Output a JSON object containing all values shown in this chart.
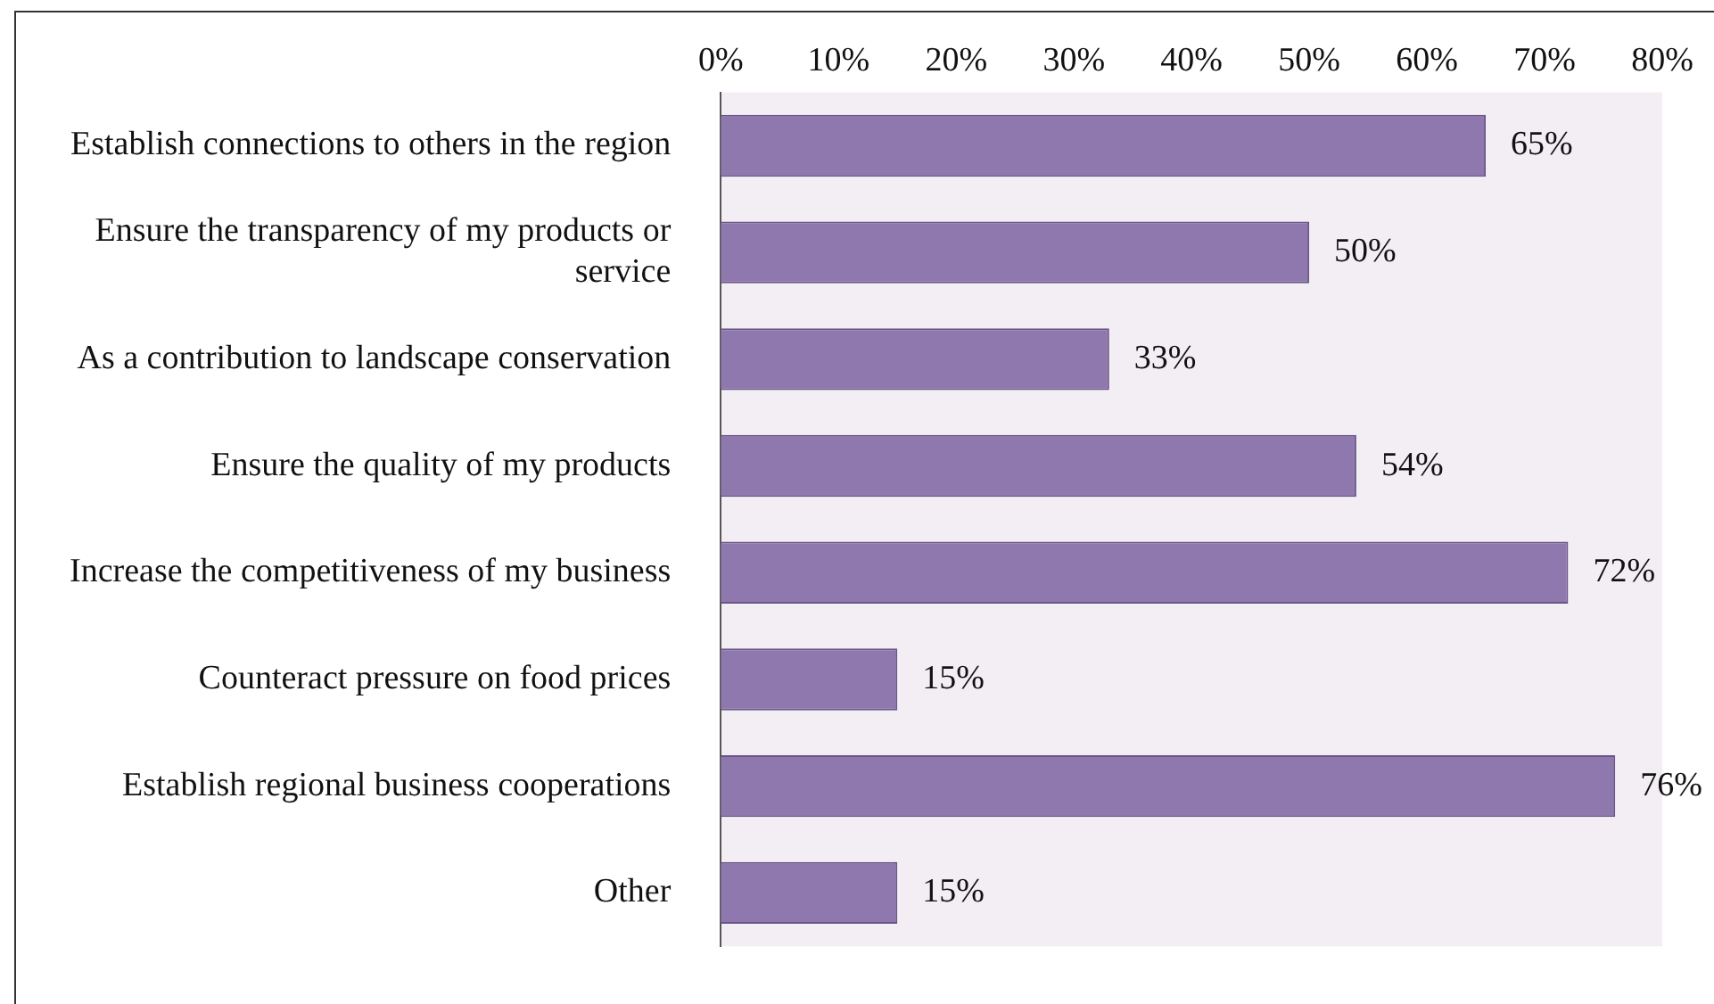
{
  "chart_data": {
    "type": "bar",
    "orientation": "horizontal",
    "categories": [
      "Establish connections to others in the region",
      "Ensure the transparency of my products or service",
      "As a contribution to landscape conservation",
      "Ensure the quality of my products",
      "Increase the competitiveness of my business",
      "Counteract pressure on food prices",
      "Establish regional business cooperations",
      "Other"
    ],
    "values": [
      65,
      50,
      33,
      54,
      72,
      15,
      76,
      15
    ],
    "value_labels": [
      "65%",
      "50%",
      "33%",
      "54%",
      "72%",
      "15%",
      "76%",
      "15%"
    ],
    "color": "#8e78ad",
    "xlim": [
      0,
      80
    ],
    "xticks": [
      {
        "value": 0,
        "label": "0%"
      },
      {
        "value": 10,
        "label": "10%"
      },
      {
        "value": 20,
        "label": "20%"
      },
      {
        "value": 30,
        "label": "30%"
      },
      {
        "value": 40,
        "label": "40%"
      },
      {
        "value": 50,
        "label": "50%"
      },
      {
        "value": 60,
        "label": "60%"
      },
      {
        "value": 70,
        "label": "70%"
      },
      {
        "value": 80,
        "label": "80%"
      }
    ],
    "grid": false,
    "legend": false
  }
}
